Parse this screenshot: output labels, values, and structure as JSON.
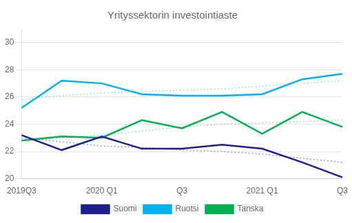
{
  "chart_data": {
    "type": "line",
    "title": "Yrityssektorin investointiaste",
    "categories": [
      "2019Q3",
      null,
      "2020 Q1",
      null,
      "Q3",
      null,
      "2021 Q1",
      null,
      "Q3"
    ],
    "series": [
      {
        "color": "#9999cc",
        "line_style": "dotted",
        "values": [
          23.0,
          22.7,
          22.4,
          22.3,
          22.1,
          22.0,
          21.8,
          21.5,
          21.2
        ]
      },
      {
        "color": "#99ddff",
        "line_style": "dotted",
        "values": [
          25.8,
          26.1,
          26.3,
          26.4,
          26.5,
          26.6,
          26.8,
          27.0,
          27.2
        ]
      },
      {
        "color": "#99ddbb",
        "line_style": "dotted",
        "values": [
          22.8,
          23.0,
          23.2,
          23.5,
          23.8,
          24.0,
          24.1,
          24.2,
          24.3
        ]
      },
      {
        "name": "Suomi",
        "color": "#1f1f8f",
        "line_style": "solid",
        "values": [
          23.2,
          22.1,
          23.1,
          22.2,
          22.2,
          22.5,
          22.2,
          21.2,
          20.1
        ]
      },
      {
        "name": "Ruotsi",
        "color": "#00b0f0",
        "line_style": "solid",
        "values": [
          25.2,
          27.2,
          27.0,
          26.2,
          26.1,
          26.1,
          26.2,
          27.3,
          27.7
        ]
      },
      {
        "name": "Tanska",
        "color": "#00b050",
        "line_style": "solid",
        "values": [
          22.8,
          23.1,
          23.0,
          24.3,
          23.7,
          24.9,
          23.3,
          24.9,
          23.8
        ]
      }
    ],
    "ylim": [
      20,
      31
    ],
    "yticks": [
      20,
      22,
      24,
      26,
      28,
      30
    ],
    "grid": true,
    "legend": "bottom"
  }
}
